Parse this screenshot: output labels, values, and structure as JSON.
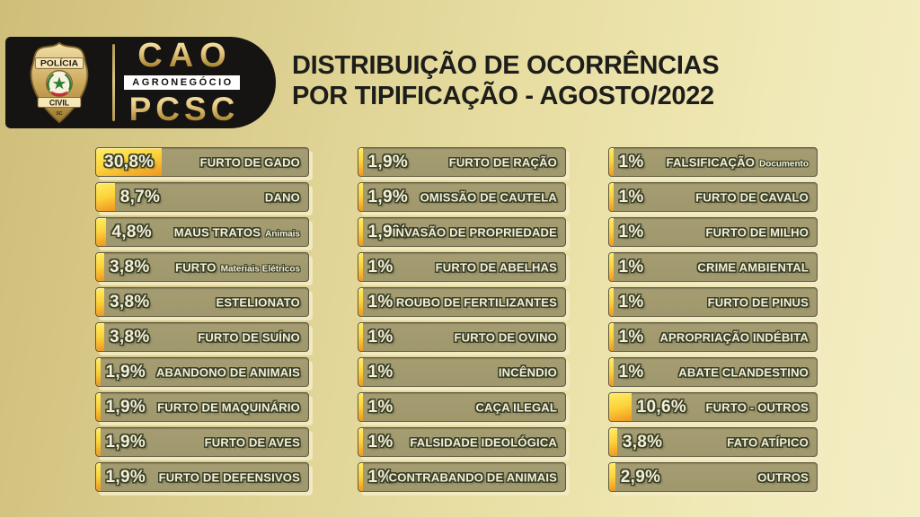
{
  "header": {
    "badge": {
      "top": "POLÍCIA",
      "bottom": "CIVIL",
      "footnote": "SC"
    },
    "logo": {
      "line1": "CAO",
      "line2": "AGRONEGÓCIO",
      "line3": "PCSC"
    },
    "title_line1": "DISTRIBUIÇÃO DE OCORRÊNCIAS",
    "title_line2": "POR TIPIFICAÇÃO - AGOSTO/2022"
  },
  "chart_data": {
    "type": "bar",
    "orientation": "horizontal",
    "title": "DISTRIBUIÇÃO DE OCORRÊNCIAS POR TIPIFICAÇÃO - AGOSTO/2022",
    "unit": "%",
    "xlim": [
      0,
      100
    ],
    "grid": false,
    "legend": "none",
    "columns": [
      [
        {
          "value": 30.8,
          "display": "30,8%",
          "label": "FURTO DE GADO",
          "sublabel": ""
        },
        {
          "value": 8.7,
          "display": "8,7%",
          "label": "DANO",
          "sublabel": ""
        },
        {
          "value": 4.8,
          "display": "4,8%",
          "label": "MAUS TRATOS",
          "sublabel": "Animais"
        },
        {
          "value": 3.8,
          "display": "3,8%",
          "label": "FURTO",
          "sublabel": "Materiais Elétricos"
        },
        {
          "value": 3.8,
          "display": "3,8%",
          "label": "ESTELIONATO",
          "sublabel": ""
        },
        {
          "value": 3.8,
          "display": "3,8%",
          "label": "FURTO DE SUÍNO",
          "sublabel": ""
        },
        {
          "value": 1.9,
          "display": "1,9%",
          "label": "ABANDONO DE ANIMAIS",
          "sublabel": ""
        },
        {
          "value": 1.9,
          "display": "1,9%",
          "label": "FURTO DE MAQUINÁRIO",
          "sublabel": ""
        },
        {
          "value": 1.9,
          "display": "1,9%",
          "label": "FURTO DE AVES",
          "sublabel": ""
        },
        {
          "value": 1.9,
          "display": "1,9%",
          "label": "FURTO DE DEFENSIVOS",
          "sublabel": ""
        }
      ],
      [
        {
          "value": 1.9,
          "display": "1,9%",
          "label": "FURTO DE RAÇÃO",
          "sublabel": ""
        },
        {
          "value": 1.9,
          "display": "1,9%",
          "label": "OMISSÃO DE CAUTELA",
          "sublabel": ""
        },
        {
          "value": 1.9,
          "display": "1,9%",
          "label": "INVASÃO DE PROPRIEDADE",
          "sublabel": ""
        },
        {
          "value": 1.0,
          "display": "1%",
          "label": "FURTO DE ABELHAS",
          "sublabel": ""
        },
        {
          "value": 1.0,
          "display": "1%",
          "label": "ROUBO DE FERTILIZANTES",
          "sublabel": ""
        },
        {
          "value": 1.0,
          "display": "1%",
          "label": "FURTO DE OVINO",
          "sublabel": ""
        },
        {
          "value": 1.0,
          "display": "1%",
          "label": "INCÊNDIO",
          "sublabel": ""
        },
        {
          "value": 1.0,
          "display": "1%",
          "label": "CAÇA ILEGAL",
          "sublabel": ""
        },
        {
          "value": 1.0,
          "display": "1%",
          "label": "FALSIDADE IDEOLÓGICA",
          "sublabel": ""
        },
        {
          "value": 1.0,
          "display": "1%",
          "label": "CONTRABANDO DE ANIMAIS",
          "sublabel": ""
        }
      ],
      [
        {
          "value": 1.0,
          "display": "1%",
          "label": "FALSIFICAÇÃO",
          "sublabel": "Documento"
        },
        {
          "value": 1.0,
          "display": "1%",
          "label": "FURTO DE CAVALO",
          "sublabel": ""
        },
        {
          "value": 1.0,
          "display": "1%",
          "label": "FURTO DE MILHO",
          "sublabel": ""
        },
        {
          "value": 1.0,
          "display": "1%",
          "label": "CRIME AMBIENTAL",
          "sublabel": ""
        },
        {
          "value": 1.0,
          "display": "1%",
          "label": "FURTO DE PINUS",
          "sublabel": ""
        },
        {
          "value": 1.0,
          "display": "1%",
          "label": "APROPRIAÇÃO INDÉBITA",
          "sublabel": ""
        },
        {
          "value": 1.0,
          "display": "1%",
          "label": "ABATE CLANDESTINO",
          "sublabel": ""
        },
        {
          "value": 10.6,
          "display": "10,6%",
          "label": "FURTO - OUTROS",
          "sublabel": ""
        },
        {
          "value": 3.8,
          "display": "3,8%",
          "label": "FATO ATÍPICO",
          "sublabel": ""
        },
        {
          "value": 2.9,
          "display": "2,9%",
          "label": "OUTROS",
          "sublabel": ""
        }
      ]
    ]
  },
  "colors": {
    "background_gold": "#e3d79c",
    "header_black": "#161413",
    "logo_gold": "#d9b86a",
    "title_text": "#1d1d1a",
    "bar_background": "#a0986d",
    "bar_border": "#5e5940",
    "bar_drop_shadow": "#f3ebc4",
    "fill_yellow": "#ffe14d",
    "fill_orange": "#f09b22",
    "label_fill": "#f4efd8",
    "label_outline": "#3b4127"
  }
}
